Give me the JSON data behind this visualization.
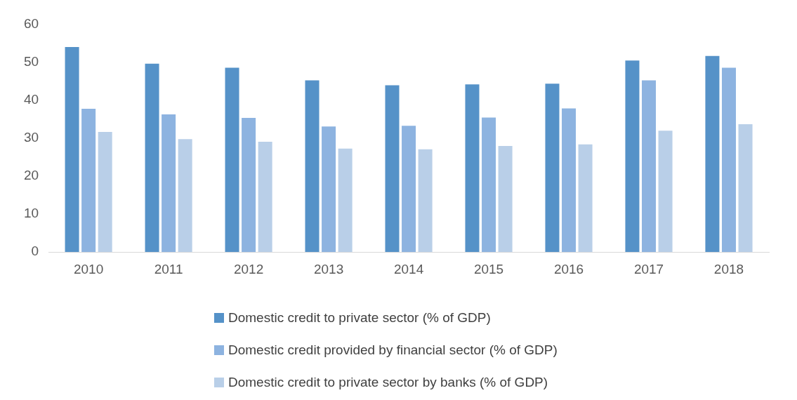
{
  "chart_data": {
    "type": "bar",
    "categories": [
      "2010",
      "2011",
      "2012",
      "2013",
      "2014",
      "2015",
      "2016",
      "2017",
      "2018"
    ],
    "series": [
      {
        "name": "Domestic credit to private sector (% of GDP)",
        "color": "#5592c8",
        "values": [
          54.1,
          49.7,
          48.6,
          45.3,
          44.0,
          44.2,
          44.4,
          50.5,
          51.7
        ]
      },
      {
        "name": "Domestic credit provided by financial sector (% of GDP)",
        "color": "#8db3e0",
        "values": [
          37.8,
          36.3,
          35.4,
          33.1,
          33.3,
          35.5,
          37.9,
          45.3,
          48.6
        ]
      },
      {
        "name": "Domestic credit to private sector by banks (% of GDP)",
        "color": "#b9cfe8",
        "values": [
          31.7,
          29.8,
          29.1,
          27.3,
          27.1,
          28.0,
          28.4,
          32.0,
          33.7
        ]
      }
    ],
    "ylim": [
      0,
      60
    ],
    "yticks": [
      0,
      10,
      20,
      30,
      40,
      50,
      60
    ],
    "grid": false,
    "legend": "bottom"
  }
}
